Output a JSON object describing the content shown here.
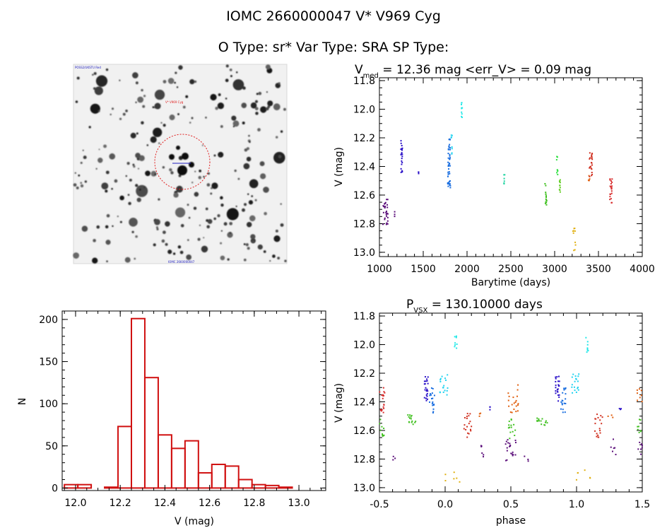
{
  "header": {
    "title": "IOMC 2660000047    V* V969 Cyg",
    "subtitle": "O Type: sr*  Var Type: SRA  SP Type:"
  },
  "image_panel": {
    "label_top": "POSS2/UKSTU Red",
    "label_mid": "V* V969 Cyg",
    "label_bottom": "IOMC 2660000047"
  },
  "chart_data": [
    {
      "type": "scatter",
      "title_main": "V",
      "title_sub": "med",
      "title_rest": " = 12.36 mag <err_V> = 0.09 mag",
      "xlabel": "Barytime (days)",
      "ylabel": "V (mag)",
      "xlim": [
        1000,
        4000
      ],
      "ylim": [
        13.03,
        11.78
      ],
      "y_inverted": true,
      "xticks": [
        "1000",
        "1500",
        "2000",
        "2500",
        "3000",
        "3500",
        "4000"
      ],
      "yticks": [
        "11.8",
        "12.0",
        "12.2",
        "12.4",
        "12.6",
        "12.8",
        "13.0"
      ],
      "groups": [
        {
          "color": "#5b0e7a",
          "x": [
            1040,
            1100
          ],
          "y": [
            12.62,
            12.82
          ],
          "n": 28
        },
        {
          "color": "#5b0e7a",
          "x": [
            1170,
            1180
          ],
          "y": [
            12.68,
            12.81
          ],
          "n": 3
        },
        {
          "color": "#2a10c8",
          "x": [
            1245,
            1262
          ],
          "y": [
            12.22,
            12.46
          ],
          "n": 22
        },
        {
          "color": "#2a10c8",
          "x": [
            1440,
            1450
          ],
          "y": [
            12.43,
            12.47
          ],
          "n": 3
        },
        {
          "color": "#1a6ee0",
          "x": [
            1780,
            1810
          ],
          "y": [
            12.2,
            12.55
          ],
          "n": 45
        },
        {
          "color": "#22d3f0",
          "x": [
            1820,
            1830
          ],
          "y": [
            12.18,
            12.32
          ],
          "n": 8
        },
        {
          "color": "#22e8e8",
          "x": [
            1935,
            1945
          ],
          "y": [
            11.94,
            12.06
          ],
          "n": 10
        },
        {
          "color": "#1fd4a0",
          "x": [
            2420,
            2430
          ],
          "y": [
            12.45,
            12.56
          ],
          "n": 6
        },
        {
          "color": "#40c020",
          "x": [
            2890,
            2910
          ],
          "y": [
            12.52,
            12.67
          ],
          "n": 14
        },
        {
          "color": "#2ee040",
          "x": [
            3020,
            3035
          ],
          "y": [
            12.32,
            12.46
          ],
          "n": 8
        },
        {
          "color": "#60cc20",
          "x": [
            3050,
            3065
          ],
          "y": [
            12.48,
            12.6
          ],
          "n": 10
        },
        {
          "color": "#e0b010",
          "x": [
            3210,
            3240
          ],
          "y": [
            12.83,
            13.0
          ],
          "n": 10
        },
        {
          "color": "#e06010",
          "x": [
            3380,
            3400
          ],
          "y": [
            12.46,
            12.51
          ],
          "n": 5
        },
        {
          "color": "#d03020",
          "x": [
            3395,
            3430
          ],
          "y": [
            12.3,
            12.48
          ],
          "n": 22
        },
        {
          "color": "#d83030",
          "x": [
            3630,
            3660
          ],
          "y": [
            12.48,
            12.66
          ],
          "n": 22
        }
      ]
    },
    {
      "type": "bar",
      "xlabel": "V (mag)",
      "ylabel": "N",
      "xlim": [
        11.94,
        13.12
      ],
      "ylim": [
        -3,
        210
      ],
      "xticks": [
        "12.0",
        "12.2",
        "12.4",
        "12.6",
        "12.8",
        "13.0"
      ],
      "yticks": [
        "0",
        "50",
        "100",
        "150",
        "200"
      ],
      "bin_width": 0.06,
      "bin_left_edges": [
        11.95,
        12.01,
        12.07,
        12.13,
        12.19,
        12.25,
        12.31,
        12.37,
        12.43,
        12.49,
        12.55,
        12.61,
        12.67,
        12.73,
        12.79,
        12.85,
        12.91,
        12.97,
        13.03
      ],
      "values": [
        4,
        4,
        0,
        1,
        73,
        201,
        131,
        63,
        47,
        56,
        18,
        28,
        26,
        10,
        4,
        3,
        1,
        0,
        0
      ],
      "color": "#d01010"
    },
    {
      "type": "scatter",
      "title_main": "P",
      "title_sub": "VSX",
      "title_rest": " = 130.10000 days",
      "xlabel": "phase",
      "ylabel": "V (mag)",
      "xlim": [
        -0.5,
        1.5
      ],
      "ylim": [
        13.03,
        11.78
      ],
      "y_inverted": true,
      "xticks": [
        "-0.5",
        "0.0",
        "0.5",
        "1.0",
        "1.5"
      ],
      "yticks": [
        "11.8",
        "12.0",
        "12.2",
        "12.4",
        "12.6",
        "12.8",
        "13.0"
      ],
      "groups": [
        {
          "color": "#d83030",
          "x": [
            -0.5,
            -0.46
          ],
          "y": [
            12.3,
            12.48
          ],
          "n": 18
        },
        {
          "color": "#40c020",
          "x": [
            -0.5,
            -0.46
          ],
          "y": [
            12.52,
            12.66
          ],
          "n": 10
        },
        {
          "color": "#40c020",
          "x": [
            -0.3,
            -0.22
          ],
          "y": [
            12.48,
            12.58
          ],
          "n": 14
        },
        {
          "color": "#5b0e7a",
          "x": [
            -0.4,
            -0.36
          ],
          "y": [
            12.78,
            12.82
          ],
          "n": 3
        },
        {
          "color": "#2a10c8",
          "x": [
            -0.16,
            -0.13
          ],
          "y": [
            12.22,
            12.4
          ],
          "n": 22
        },
        {
          "color": "#1a6ee0",
          "x": [
            -0.12,
            -0.08
          ],
          "y": [
            12.3,
            12.48
          ],
          "n": 18
        },
        {
          "color": "#22d3f0",
          "x": [
            -0.04,
            0.02
          ],
          "y": [
            12.2,
            12.36
          ],
          "n": 18
        },
        {
          "color": "#22e8e8",
          "x": [
            0.07,
            0.09
          ],
          "y": [
            11.94,
            12.06
          ],
          "n": 8
        },
        {
          "color": "#e0b010",
          "x": [
            -0.02,
            0.12
          ],
          "y": [
            12.88,
            12.96
          ],
          "n": 6
        },
        {
          "color": "#d03020",
          "x": [
            0.14,
            0.2
          ],
          "y": [
            12.48,
            12.65
          ],
          "n": 18
        },
        {
          "color": "#e06010",
          "x": [
            0.26,
            0.28
          ],
          "y": [
            12.48,
            12.52
          ],
          "n": 3
        },
        {
          "color": "#5b0e7a",
          "x": [
            0.27,
            0.3
          ],
          "y": [
            12.68,
            12.8
          ],
          "n": 6
        },
        {
          "color": "#2a10c8",
          "x": [
            0.33,
            0.35
          ],
          "y": [
            12.42,
            12.46
          ],
          "n": 3
        },
        {
          "color": "#e06010",
          "x": [
            0.48,
            0.56
          ],
          "y": [
            12.28,
            12.48
          ],
          "n": 20
        },
        {
          "color": "#40c020",
          "x": [
            0.48,
            0.54
          ],
          "y": [
            12.52,
            12.66
          ],
          "n": 14
        },
        {
          "color": "#5b0e7a",
          "x": [
            0.46,
            0.54
          ],
          "y": [
            12.66,
            12.82
          ],
          "n": 20
        },
        {
          "color": "#40c020",
          "x": [
            0.7,
            0.78
          ],
          "y": [
            12.48,
            12.58
          ],
          "n": 14
        },
        {
          "color": "#5b0e7a",
          "x": [
            0.6,
            0.64
          ],
          "y": [
            12.78,
            12.82
          ],
          "n": 3
        },
        {
          "color": "#2a10c8",
          "x": [
            0.84,
            0.87
          ],
          "y": [
            12.22,
            12.4
          ],
          "n": 22
        },
        {
          "color": "#1a6ee0",
          "x": [
            0.88,
            0.92
          ],
          "y": [
            12.3,
            12.48
          ],
          "n": 18
        },
        {
          "color": "#22d3f0",
          "x": [
            0.96,
            1.02
          ],
          "y": [
            12.2,
            12.36
          ],
          "n": 18
        },
        {
          "color": "#22e8e8",
          "x": [
            1.07,
            1.09
          ],
          "y": [
            11.94,
            12.06
          ],
          "n": 8
        },
        {
          "color": "#e0b010",
          "x": [
            0.98,
            1.12
          ],
          "y": [
            12.86,
            12.96
          ],
          "n": 6
        },
        {
          "color": "#d03020",
          "x": [
            1.14,
            1.2
          ],
          "y": [
            12.48,
            12.65
          ],
          "n": 18
        },
        {
          "color": "#e06010",
          "x": [
            1.24,
            1.28
          ],
          "y": [
            12.48,
            12.52
          ],
          "n": 3
        },
        {
          "color": "#5b0e7a",
          "x": [
            1.26,
            1.3
          ],
          "y": [
            12.66,
            12.78
          ],
          "n": 6
        },
        {
          "color": "#2a10c8",
          "x": [
            1.32,
            1.34
          ],
          "y": [
            12.42,
            12.46
          ],
          "n": 3
        },
        {
          "color": "#40c020",
          "x": [
            1.46,
            1.5
          ],
          "y": [
            12.52,
            12.62
          ],
          "n": 8
        },
        {
          "color": "#e06010",
          "x": [
            1.46,
            1.5
          ],
          "y": [
            12.3,
            12.4
          ],
          "n": 8
        },
        {
          "color": "#5b0e7a",
          "x": [
            1.46,
            1.5
          ],
          "y": [
            12.68,
            12.78
          ],
          "n": 8
        }
      ]
    }
  ]
}
